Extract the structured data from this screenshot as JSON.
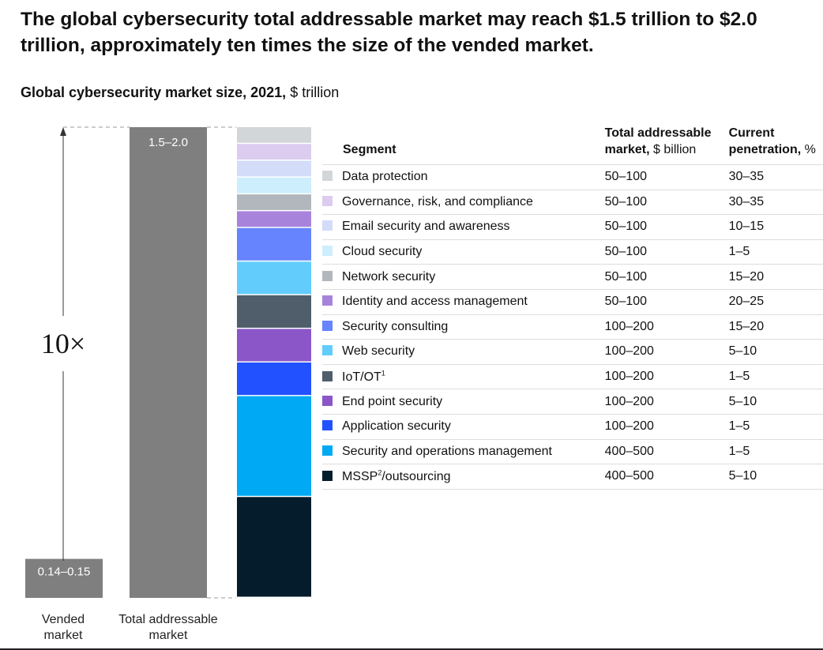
{
  "title": "The global cybersecurity total addressable market may reach $1.5 trillion to $2.0 trillion, approximately ten times the size of the vended market.",
  "subtitle": "Global cybersecurity market size, 2021,",
  "subtitle_unit": "$ trillion",
  "multiplier_label": "10×",
  "table_headers": {
    "segment": "Segment",
    "tam": "Total addressable",
    "tam_line2": "market,",
    "tam_unit": "$ billion",
    "pen": "Current",
    "pen_line2": "penetration,",
    "pen_unit": "%"
  },
  "chart_data": {
    "type": "bar",
    "categories": [
      "Vended market",
      "Total addressable market"
    ],
    "values": [
      0.145,
      1.75
    ],
    "data_labels": [
      "0.14–0.15",
      "1.5–2.0"
    ],
    "ylim": [
      0,
      1.75
    ],
    "grid": false,
    "legend": "right table",
    "colors": [
      "#7f7f7f",
      "#7f7f7f"
    ],
    "segments": [
      {
        "name": "Data protection",
        "tam": "50–100",
        "tam_mid": 75,
        "penetration": "30–35",
        "color": "#d3d6d8"
      },
      {
        "name": "Governance, risk, and compliance",
        "tam": "50–100",
        "tam_mid": 75,
        "penetration": "30–35",
        "color": "#dcccef"
      },
      {
        "name": "Email security and awareness",
        "tam": "50–100",
        "tam_mid": 75,
        "penetration": "10–15",
        "color": "#d3dcf9"
      },
      {
        "name": "Cloud security",
        "tam": "50–100",
        "tam_mid": 75,
        "penetration": "1–5",
        "color": "#cdeefc"
      },
      {
        "name": "Network security",
        "tam": "50–100",
        "tam_mid": 75,
        "penetration": "15–20",
        "color": "#b1b7bc"
      },
      {
        "name": "Identity and access management",
        "tam": "50–100",
        "tam_mid": 75,
        "penetration": "20–25",
        "color": "#a883dc"
      },
      {
        "name": "Security consulting",
        "tam": "100–200",
        "tam_mid": 150,
        "penetration": "15–20",
        "color": "#6584fd"
      },
      {
        "name": "Web security",
        "tam": "100–200",
        "tam_mid": 150,
        "penetration": "5–10",
        "color": "#62cdfd"
      },
      {
        "name": "IoT/OT",
        "sup": "1",
        "tam": "100–200",
        "tam_mid": 150,
        "penetration": "1–5",
        "color": "#4f5e6a"
      },
      {
        "name": "End point security",
        "tam": "100–200",
        "tam_mid": 150,
        "penetration": "5–10",
        "color": "#8a56c8"
      },
      {
        "name": "Application security",
        "tam": "100–200",
        "tam_mid": 150,
        "penetration": "1–5",
        "color": "#2251ff"
      },
      {
        "name": "Security and operations management",
        "tam": "400–500",
        "tam_mid": 450,
        "penetration": "1–5",
        "color": "#00a9f4"
      },
      {
        "name": "MSSP",
        "sup": "2",
        "name_suffix": "/outsourcing",
        "tam": "400–500",
        "tam_mid": 450,
        "penetration": "5–10",
        "color": "#051c2c"
      }
    ]
  }
}
